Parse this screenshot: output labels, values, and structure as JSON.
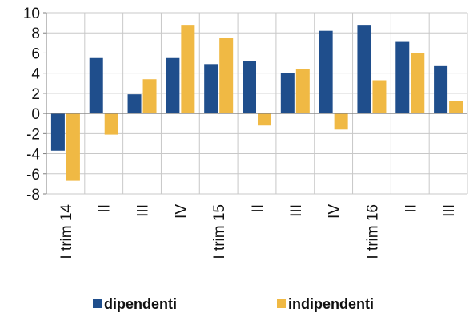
{
  "chart_data": {
    "type": "bar",
    "title": "",
    "xlabel": "",
    "ylabel": "",
    "categories": [
      "I trim 14",
      "II",
      "III",
      "IV",
      "I trim 15",
      "II",
      "III",
      "IV",
      "I trim 16",
      "II",
      "III"
    ],
    "series": [
      {
        "name": "dipendenti",
        "color": "#1f4e8c",
        "values": [
          -3.7,
          5.5,
          1.9,
          5.5,
          4.9,
          5.2,
          4.0,
          8.2,
          8.8,
          7.1,
          4.7
        ]
      },
      {
        "name": "indipendenti",
        "color": "#f0b944",
        "values": [
          -6.7,
          -2.1,
          3.4,
          8.8,
          7.5,
          -1.2,
          4.4,
          -1.6,
          3.3,
          6.0,
          1.2
        ]
      }
    ],
    "ylim": [
      -8,
      10
    ],
    "yticks": [
      -8,
      -6,
      -4,
      -2,
      0,
      2,
      4,
      6,
      8,
      10
    ],
    "grid": true,
    "legend_position": "bottom"
  }
}
